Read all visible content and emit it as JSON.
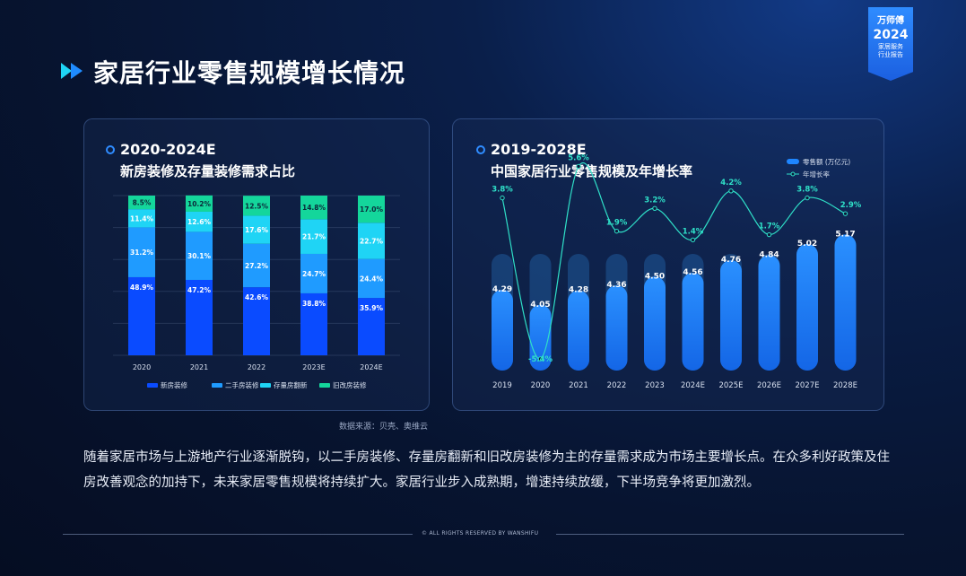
{
  "page": {
    "title": "家居行业零售规模增长情况",
    "source": "数据来源：贝壳、奥维云",
    "body": "随着家居市场与上游地产行业逐渐脱钩，以二手房装修、存量房翻新和旧改房装修为主的存量需求成为市场主要增长点。在众多利好政策及住房改善观念的加持下，未来家居零售规模将持续扩大。家居行业步入成熟期，增速持续放缓，下半场竞争将更加激烈。",
    "footer": "© ALL RIGHTS RESERVED BY WANSHIFU"
  },
  "badge": {
    "brand": "万师傅",
    "year": "2024",
    "line1": "家居服务",
    "line2": "行业报告"
  },
  "colors": {
    "new_house": "#0a4bff",
    "second_hand": "#1f9bff",
    "stock_renovation": "#1fd4f5",
    "old_renovation": "#14d69b",
    "bar_light": "#1e86ff",
    "line": "#2fe0c8"
  },
  "chart_data": [
    {
      "type": "bar",
      "stacked": true,
      "percent": true,
      "range_title": "2020-2024E",
      "title": "新房装修及存量装修需求占比",
      "categories": [
        "2020",
        "2021",
        "2022",
        "2023E",
        "2024E"
      ],
      "series": [
        {
          "name": "新房装修",
          "values": [
            48.9,
            47.2,
            42.6,
            38.8,
            35.9
          ],
          "labels": [
            "48.9%",
            "47.2%",
            "42.6%",
            "38.8%",
            "35.9%"
          ]
        },
        {
          "name": "二手房装修",
          "values": [
            31.2,
            30.1,
            27.2,
            24.7,
            24.4
          ],
          "labels": [
            "31.2%",
            "30.1%",
            "27.2%",
            "24.7%",
            "24.4%"
          ]
        },
        {
          "name": "存量房翻新",
          "values": [
            11.4,
            12.6,
            17.6,
            21.7,
            22.7
          ],
          "labels": [
            "11.4%",
            "12.6%",
            "17.6%",
            "21.7%",
            "22.7%"
          ]
        },
        {
          "name": "旧改房装修",
          "values": [
            8.5,
            10.2,
            12.5,
            14.8,
            17.0
          ],
          "labels": [
            "8.5%",
            "10.2%",
            "12.5%",
            "14.8%",
            "17.0%"
          ]
        }
      ],
      "ylim": [
        0,
        100
      ],
      "legend_position": "bottom",
      "grid": true
    },
    {
      "type": "bar",
      "range_title": "2019-2028E",
      "title": "中国家居行业零售规模及年增长率",
      "categories": [
        "2019",
        "2020",
        "2021",
        "2022",
        "2023",
        "2024E",
        "2025E",
        "2026E",
        "2027E",
        "2028E"
      ],
      "series": [
        {
          "name": "零售额 (万亿元)",
          "type": "bar",
          "values": [
            4.29,
            4.05,
            4.28,
            4.36,
            4.5,
            4.56,
            4.76,
            4.84,
            5.02,
            5.17
          ],
          "labels": [
            "4.29",
            "4.05",
            "4.28",
            "4.36",
            "4.50",
            "4.56",
            "4.76",
            "4.84",
            "5.02",
            "5.17"
          ]
        },
        {
          "name": "年增长率",
          "type": "line",
          "values": [
            3.8,
            -5.4,
            5.6,
            1.9,
            3.2,
            1.4,
            4.2,
            1.7,
            3.8,
            2.9
          ],
          "labels": [
            "3.8%",
            "-5.4%",
            "5.6%",
            "1.9%",
            "3.2%",
            "1.4%",
            "4.2%",
            "1.7%",
            "3.8%",
            "2.9%"
          ]
        }
      ],
      "legend_position": "top-right",
      "grid": false
    }
  ]
}
